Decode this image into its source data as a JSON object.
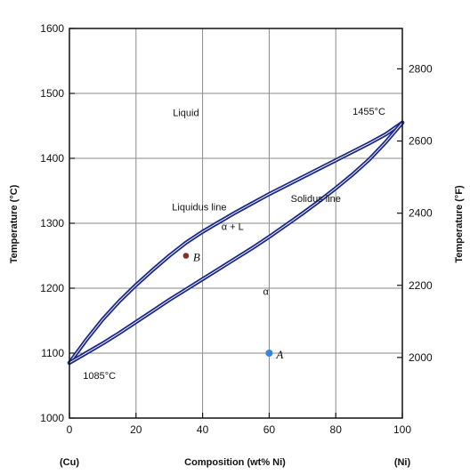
{
  "chart_data": {
    "type": "line",
    "title": "",
    "xlabel": "Composition (wt% Ni)",
    "ylabel": "Temperature (°C)",
    "y2label": "Temperature (°F)",
    "x_end_labels": {
      "left": "(Cu)",
      "right": "(Ni)"
    },
    "xlim": [
      0,
      100
    ],
    "ylim": [
      1000,
      1600
    ],
    "y2lim_approx": [
      1832,
      2912
    ],
    "xticks": [
      0,
      20,
      40,
      60,
      80,
      100
    ],
    "yticks": [
      1000,
      1100,
      1200,
      1300,
      1400,
      1500,
      1600
    ],
    "y2ticks": [
      2000,
      2200,
      2400,
      2600,
      2800
    ],
    "grid": true,
    "colors": {
      "curve": "#1c2a8c",
      "pointA": "#2e86e8",
      "pointB": "#8a2a2a",
      "grid": "#8a8a8a"
    },
    "series": [
      {
        "name": "Liquidus line",
        "x": [
          0,
          5,
          10,
          15,
          20,
          25,
          30,
          35,
          40,
          45,
          50,
          55,
          60,
          65,
          70,
          75,
          80,
          85,
          90,
          95,
          100
        ],
        "y": [
          1085,
          1120,
          1152,
          1180,
          1205,
          1228,
          1250,
          1270,
          1287,
          1302,
          1317,
          1331,
          1345,
          1358,
          1371,
          1384,
          1397,
          1410,
          1423,
          1437,
          1455
        ]
      },
      {
        "name": "Solidus line",
        "x": [
          0,
          5,
          10,
          15,
          20,
          25,
          30,
          35,
          40,
          45,
          50,
          55,
          60,
          65,
          70,
          75,
          80,
          85,
          90,
          95,
          100
        ],
        "y": [
          1085,
          1100,
          1115,
          1131,
          1148,
          1165,
          1182,
          1198,
          1214,
          1230,
          1246,
          1262,
          1279,
          1297,
          1315,
          1334,
          1354,
          1375,
          1398,
          1425,
          1455
        ]
      }
    ],
    "points": [
      {
        "name": "A",
        "x": 60,
        "y": 1100
      },
      {
        "name": "B",
        "x": 35,
        "y": 1250
      }
    ],
    "annotations": [
      {
        "text": "Liquid",
        "x": 35,
        "y": 1465
      },
      {
        "text": "Liquidus line",
        "x": 39,
        "y": 1320
      },
      {
        "text": "α + L",
        "x": 49,
        "y": 1290
      },
      {
        "text": "Solidus line",
        "x": 74,
        "y": 1333
      },
      {
        "text": "α",
        "x": 59,
        "y": 1190
      },
      {
        "text": "1455°C",
        "x": 90,
        "y": 1467
      },
      {
        "text": "1085°C",
        "x": 9,
        "y": 1060
      }
    ]
  }
}
